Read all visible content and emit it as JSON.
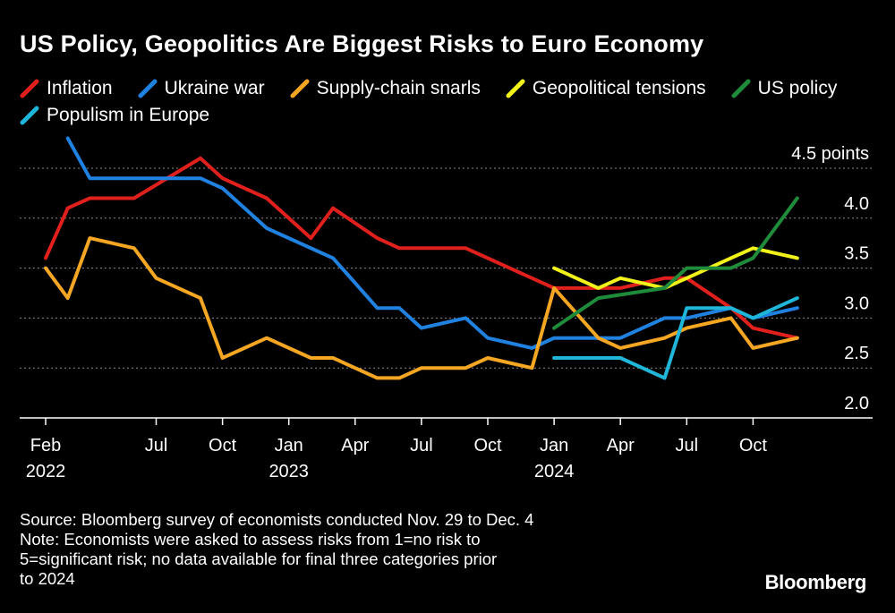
{
  "title": "US Policy, Geopolitics Are Biggest Risks to Euro Economy",
  "legend": [
    {
      "label": "Inflation",
      "color": "#e0201c"
    },
    {
      "label": "Ukraine war",
      "color": "#1f82e0"
    },
    {
      "label": "Supply-chain snarls",
      "color": "#f5a623"
    },
    {
      "label": "Geopolitical tensions",
      "color": "#f2f21b"
    },
    {
      "label": "US policy",
      "color": "#1e8c3a"
    },
    {
      "label": "Populism in Europe",
      "color": "#1fb6d9"
    }
  ],
  "footer": {
    "source": "Source: Bloomberg survey of economists conducted Nov. 29 to Dec. 4",
    "note_1": "Note: Economists were asked to assess risks from 1=no risk to",
    "note_2": "5=significant risk; no data available for final three categories prior",
    "note_3": "to 2024"
  },
  "logo": "Bloomberg",
  "chart_data": {
    "type": "line",
    "x_months": [
      "2022-02",
      "2022-03",
      "2022-04",
      "2022-05",
      "2022-06",
      "2022-07",
      "2022-08",
      "2022-09",
      "2022-10",
      "2022-11",
      "2022-12",
      "2023-01",
      "2023-02",
      "2023-03",
      "2023-04",
      "2023-05",
      "2023-06",
      "2023-07",
      "2023-08",
      "2023-09",
      "2023-10",
      "2023-11",
      "2023-12",
      "2024-01",
      "2024-02",
      "2024-03",
      "2024-04",
      "2024-05",
      "2024-06",
      "2024-07",
      "2024-08",
      "2024-09",
      "2024-10",
      "2024-11",
      "2024-12"
    ],
    "ylim": [
      2.0,
      4.5
    ],
    "y_ticks": [
      {
        "value": 2.0,
        "label": "2.0"
      },
      {
        "value": 2.5,
        "label": "2.5"
      },
      {
        "value": 3.0,
        "label": "3.0"
      },
      {
        "value": 3.5,
        "label": "3.5"
      },
      {
        "value": 4.0,
        "label": "4.0"
      },
      {
        "value": 4.5,
        "label": "4.5 points"
      }
    ],
    "x_ticks": [
      {
        "month": "2022-02",
        "label": "Feb",
        "year": "2022"
      },
      {
        "month": "2022-07",
        "label": "Jul",
        "year": ""
      },
      {
        "month": "2022-10",
        "label": "Oct",
        "year": ""
      },
      {
        "month": "2023-01",
        "label": "Jan",
        "year": "2023"
      },
      {
        "month": "2023-04",
        "label": "Apr",
        "year": ""
      },
      {
        "month": "2023-07",
        "label": "Jul",
        "year": ""
      },
      {
        "month": "2023-10",
        "label": "Oct",
        "year": ""
      },
      {
        "month": "2024-01",
        "label": "Jan",
        "year": "2024"
      },
      {
        "month": "2024-04",
        "label": "Apr",
        "year": ""
      },
      {
        "month": "2024-07",
        "label": "Jul",
        "year": ""
      },
      {
        "month": "2024-10",
        "label": "Oct",
        "year": ""
      }
    ],
    "grid": "horizontal dotted",
    "series": [
      {
        "name": "Inflation",
        "color": "#e0201c",
        "points": [
          [
            "2022-02",
            3.6
          ],
          [
            "2022-03",
            4.1
          ],
          [
            "2022-04",
            4.2
          ],
          [
            "2022-06",
            4.2
          ],
          [
            "2022-09",
            4.6
          ],
          [
            "2022-10",
            4.4
          ],
          [
            "2022-12",
            4.2
          ],
          [
            "2023-02",
            3.8
          ],
          [
            "2023-03",
            4.1
          ],
          [
            "2023-05",
            3.8
          ],
          [
            "2023-06",
            3.7
          ],
          [
            "2023-09",
            3.7
          ],
          [
            "2023-12",
            3.4
          ],
          [
            "2024-01",
            3.3
          ],
          [
            "2024-04",
            3.3
          ],
          [
            "2024-06",
            3.4
          ],
          [
            "2024-07",
            3.4
          ],
          [
            "2024-09",
            3.1
          ],
          [
            "2024-10",
            2.9
          ],
          [
            "2024-12",
            2.8
          ]
        ]
      },
      {
        "name": "Ukraine war",
        "color": "#1f82e0",
        "points": [
          [
            "2022-03",
            4.8
          ],
          [
            "2022-04",
            4.4
          ],
          [
            "2022-09",
            4.4
          ],
          [
            "2022-10",
            4.3
          ],
          [
            "2022-12",
            3.9
          ],
          [
            "2023-03",
            3.6
          ],
          [
            "2023-05",
            3.1
          ],
          [
            "2023-06",
            3.1
          ],
          [
            "2023-07",
            2.9
          ],
          [
            "2023-09",
            3.0
          ],
          [
            "2023-10",
            2.8
          ],
          [
            "2023-12",
            2.7
          ],
          [
            "2024-01",
            2.8
          ],
          [
            "2024-04",
            2.8
          ],
          [
            "2024-06",
            3.0
          ],
          [
            "2024-07",
            3.0
          ],
          [
            "2024-09",
            3.1
          ],
          [
            "2024-10",
            3.0
          ],
          [
            "2024-12",
            3.1
          ]
        ]
      },
      {
        "name": "Supply-chain snarls",
        "color": "#f5a623",
        "points": [
          [
            "2022-02",
            3.5
          ],
          [
            "2022-03",
            3.2
          ],
          [
            "2022-04",
            3.8
          ],
          [
            "2022-06",
            3.7
          ],
          [
            "2022-07",
            3.4
          ],
          [
            "2022-09",
            3.2
          ],
          [
            "2022-10",
            2.6
          ],
          [
            "2022-12",
            2.8
          ],
          [
            "2023-02",
            2.6
          ],
          [
            "2023-03",
            2.6
          ],
          [
            "2023-05",
            2.4
          ],
          [
            "2023-06",
            2.4
          ],
          [
            "2023-07",
            2.5
          ],
          [
            "2023-09",
            2.5
          ],
          [
            "2023-10",
            2.6
          ],
          [
            "2023-12",
            2.5
          ],
          [
            "2024-01",
            3.3
          ],
          [
            "2024-03",
            2.8
          ],
          [
            "2024-04",
            2.7
          ],
          [
            "2024-06",
            2.8
          ],
          [
            "2024-07",
            2.9
          ],
          [
            "2024-09",
            3.0
          ],
          [
            "2024-10",
            2.7
          ],
          [
            "2024-12",
            2.8
          ]
        ]
      },
      {
        "name": "Geopolitical tensions",
        "color": "#f2f21b",
        "points": [
          [
            "2024-01",
            3.5
          ],
          [
            "2024-03",
            3.3
          ],
          [
            "2024-04",
            3.4
          ],
          [
            "2024-06",
            3.3
          ],
          [
            "2024-07",
            3.4
          ],
          [
            "2024-09",
            3.6
          ],
          [
            "2024-10",
            3.7
          ],
          [
            "2024-12",
            3.6
          ]
        ]
      },
      {
        "name": "US policy",
        "color": "#1e8c3a",
        "points": [
          [
            "2024-01",
            2.9
          ],
          [
            "2024-03",
            3.2
          ],
          [
            "2024-06",
            3.3
          ],
          [
            "2024-07",
            3.5
          ],
          [
            "2024-09",
            3.5
          ],
          [
            "2024-10",
            3.6
          ],
          [
            "2024-12",
            4.2
          ]
        ]
      },
      {
        "name": "Populism in Europe",
        "color": "#1fb6d9",
        "points": [
          [
            "2024-01",
            2.6
          ],
          [
            "2024-04",
            2.6
          ],
          [
            "2024-06",
            2.4
          ],
          [
            "2024-07",
            3.1
          ],
          [
            "2024-09",
            3.1
          ],
          [
            "2024-10",
            3.0
          ],
          [
            "2024-12",
            3.2
          ]
        ]
      }
    ]
  }
}
